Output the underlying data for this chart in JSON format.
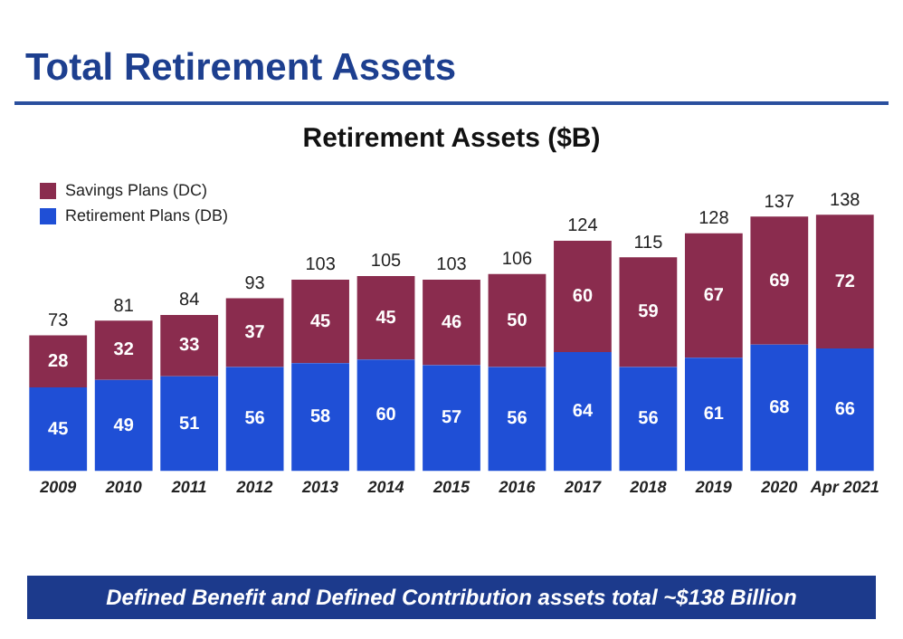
{
  "chart_data": {
    "type": "bar",
    "title": "Total Retirement Assets",
    "subtitle": "Retirement Assets ($B)",
    "categories": [
      "2009",
      "2010",
      "2011",
      "2012",
      "2013",
      "2014",
      "2015",
      "2016",
      "2017",
      "2018",
      "2019",
      "2020",
      "Apr 2021"
    ],
    "series": [
      {
        "name": "Retirement Plans (DB)",
        "color": "#1f4fd6",
        "values": [
          45,
          49,
          51,
          56,
          58,
          60,
          57,
          56,
          64,
          56,
          61,
          68,
          66
        ]
      },
      {
        "name": "Savings Plans (DC)",
        "color": "#8a2c4e",
        "values": [
          28,
          32,
          33,
          37,
          45,
          45,
          46,
          50,
          60,
          59,
          67,
          69,
          72
        ]
      }
    ],
    "stacked": true,
    "data_labels": true,
    "totals": [
      "73",
      "81",
      "84",
      "93",
      "103",
      "105",
      "103",
      "106",
      "124",
      "115",
      "128",
      "137",
      "138"
    ],
    "legend": "top left",
    "grid": false,
    "annotations": [
      "Defined Benefit and Defined Contribution assets total ~$138 Billion"
    ]
  }
}
